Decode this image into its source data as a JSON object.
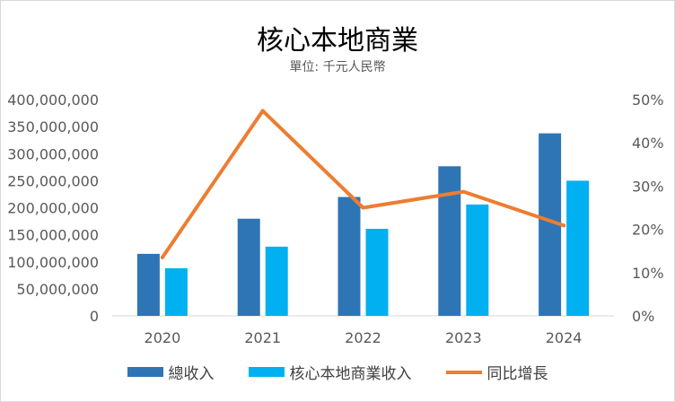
{
  "chart_data": {
    "type": "bar",
    "title": "核心本地商業",
    "subtitle": "單位: 千元人民幣",
    "categories": [
      "2020",
      "2021",
      "2022",
      "2023",
      "2024"
    ],
    "series": [
      {
        "name": "總收入",
        "type": "bar",
        "axis": "left",
        "color": "#2e75b6",
        "values": [
          114700000,
          179700000,
          219900000,
          276700000,
          337600000
        ]
      },
      {
        "name": "核心本地商業收入",
        "type": "bar",
        "axis": "left",
        "color": "#00b0f0",
        "values": [
          88000000,
          128000000,
          161000000,
          206000000,
          250000000
        ]
      },
      {
        "name": "同比增長",
        "type": "line",
        "axis": "right",
        "color": "#ed7d31",
        "values": [
          0.135,
          0.474,
          0.25,
          0.287,
          0.209
        ]
      }
    ],
    "left_axis": {
      "min": 0,
      "max": 400000000,
      "ticks": [
        "0",
        "50,000,000",
        "100,000,000",
        "150,000,000",
        "200,000,000",
        "250,000,000",
        "300,000,000",
        "350,000,000",
        "400,000,000"
      ]
    },
    "right_axis": {
      "min": 0,
      "max": 0.5,
      "ticks": [
        "0%",
        "10%",
        "20%",
        "30%",
        "40%",
        "50%"
      ]
    },
    "grid": false,
    "legend_position": "bottom"
  }
}
